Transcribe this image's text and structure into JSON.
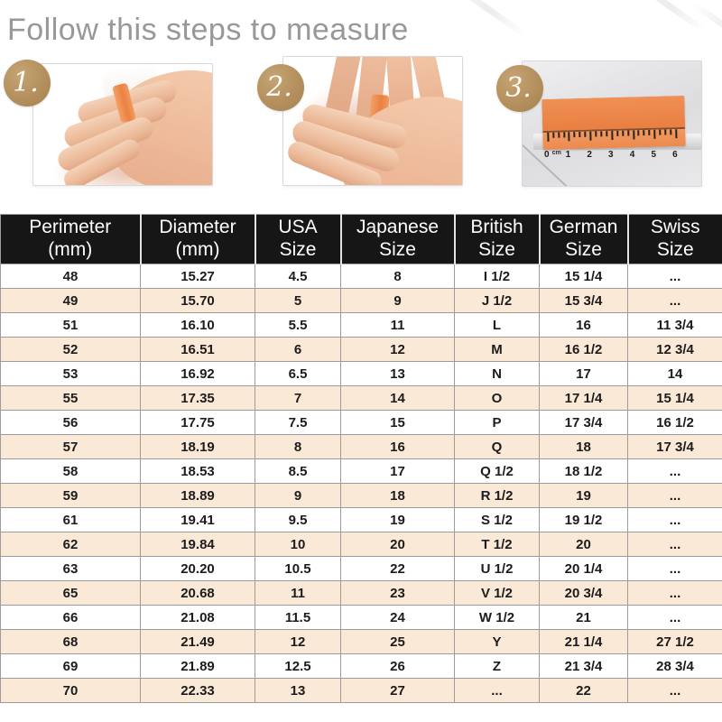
{
  "title": "Follow this steps to measure",
  "steps": [
    {
      "number": "1.",
      "photo": "hand-with-orange-strip-on-ring-finger"
    },
    {
      "number": "2.",
      "photo": "fingers-wrapping-strip-around-finger"
    },
    {
      "number": "3.",
      "photo": "orange-strip-measured-on-ruler"
    }
  ],
  "ruler": {
    "unit_label": "cm",
    "numbers": [
      "0",
      "1",
      "2",
      "3",
      "4",
      "5",
      "6"
    ]
  },
  "table": {
    "columns": [
      {
        "line1": "Perimeter",
        "line2": "(mm)"
      },
      {
        "line1": "Diameter",
        "line2": "(mm)"
      },
      {
        "line1": "USA",
        "line2": "Size"
      },
      {
        "line1": "Japanese",
        "line2": "Size"
      },
      {
        "line1": "British",
        "line2": "Size"
      },
      {
        "line1": "German",
        "line2": "Size"
      },
      {
        "line1": "Swiss",
        "line2": "Size"
      }
    ],
    "rows": [
      [
        "48",
        "15.27",
        "4.5",
        "8",
        "I 1/2",
        "15 1/4",
        "..."
      ],
      [
        "49",
        "15.70",
        "5",
        "9",
        "J 1/2",
        "15 3/4",
        "..."
      ],
      [
        "51",
        "16.10",
        "5.5",
        "11",
        "L",
        "16",
        "11 3/4"
      ],
      [
        "52",
        "16.51",
        "6",
        "12",
        "M",
        "16 1/2",
        "12 3/4"
      ],
      [
        "53",
        "16.92",
        "6.5",
        "13",
        "N",
        "17",
        "14"
      ],
      [
        "55",
        "17.35",
        "7",
        "14",
        "O",
        "17 1/4",
        "15 1/4"
      ],
      [
        "56",
        "17.75",
        "7.5",
        "15",
        "P",
        "17 3/4",
        "16 1/2"
      ],
      [
        "57",
        "18.19",
        "8",
        "16",
        "Q",
        "18",
        "17 3/4"
      ],
      [
        "58",
        "18.53",
        "8.5",
        "17",
        "Q 1/2",
        "18 1/2",
        "..."
      ],
      [
        "59",
        "18.89",
        "9",
        "18",
        "R 1/2",
        "19",
        "..."
      ],
      [
        "61",
        "19.41",
        "9.5",
        "19",
        "S 1/2",
        "19 1/2",
        "..."
      ],
      [
        "62",
        "19.84",
        "10",
        "20",
        "T 1/2",
        "20",
        "..."
      ],
      [
        "63",
        "20.20",
        "10.5",
        "22",
        "U 1/2",
        "20 1/4",
        "..."
      ],
      [
        "65",
        "20.68",
        "11",
        "23",
        "V 1/2",
        "20 3/4",
        "..."
      ],
      [
        "66",
        "21.08",
        "11.5",
        "24",
        "W 1/2",
        "21",
        "..."
      ],
      [
        "68",
        "21.49",
        "12",
        "25",
        "Y",
        "21 1/4",
        "27 1/2"
      ],
      [
        "69",
        "21.89",
        "12.5",
        "26",
        "Z",
        "21 3/4",
        "28 3/4"
      ],
      [
        "70",
        "22.33",
        "13",
        "27",
        "...",
        "22",
        "..."
      ]
    ]
  },
  "colors": {
    "accent_orange": "#ec8a4e",
    "badge_gold": "#b3905e",
    "row_peach": "#fbe9d7",
    "header_bg": "#161616",
    "header_text": "#ffffff",
    "grid_border": "#9c9c9c",
    "title_gray": "#989898"
  }
}
